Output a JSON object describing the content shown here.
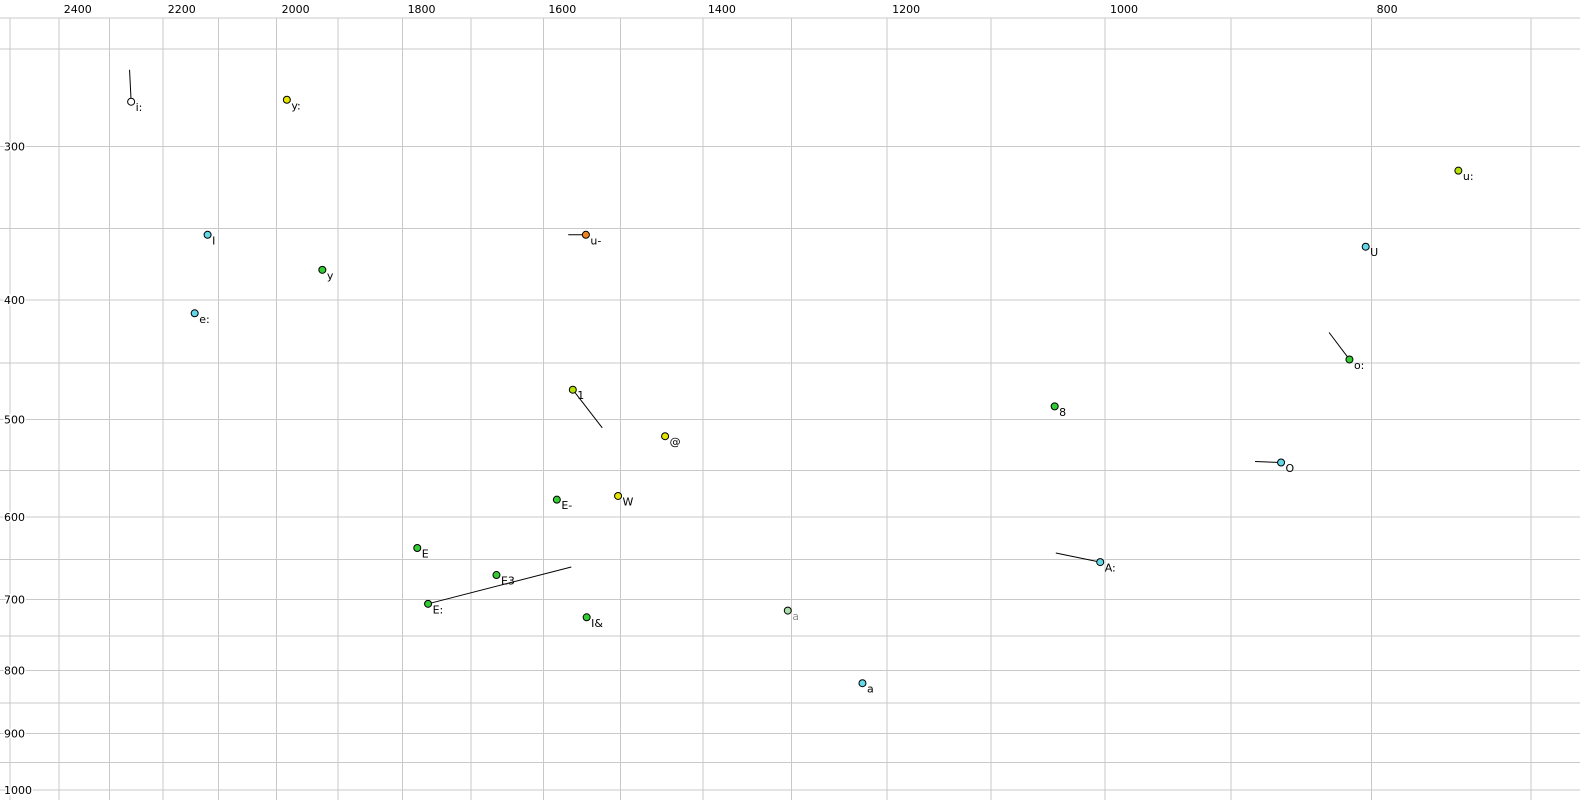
{
  "chart_data": {
    "type": "scatter",
    "title": "",
    "x_axis": {
      "scale": "log",
      "reversed": true,
      "left_value": 2521,
      "right_value": 672,
      "tick_labels": [
        "2400",
        "2200",
        "2000",
        "1800",
        "1600",
        "1400",
        "1200",
        "1000",
        "800"
      ],
      "tick_values": [
        2400,
        2200,
        2000,
        1800,
        1600,
        1400,
        1200,
        1000,
        800
      ],
      "gridline_min": 700,
      "gridline_max": 2500,
      "gridline_step": 100
    },
    "y_axis": {
      "scale": "log",
      "top_value": 236,
      "bottom_value": 1019,
      "tick_labels": [
        "300",
        "400",
        "500",
        "600",
        "700",
        "800",
        "900",
        "1000"
      ],
      "tick_values": [
        300,
        400,
        500,
        600,
        700,
        800,
        900,
        1000
      ],
      "gridline_min": 250,
      "gridline_max": 1000,
      "gridline_step": 50
    },
    "points": [
      {
        "label": "i:",
        "f2": 2259,
        "f1": 276,
        "color": "#ffffff",
        "tail": [
          2262,
          260
        ]
      },
      {
        "label": "y:",
        "f2": 1983,
        "f1": 275,
        "color": "#e5e500"
      },
      {
        "label": "u:",
        "f2": 744,
        "f1": 314,
        "color": "#b5e000"
      },
      {
        "label": "I",
        "f2": 2119,
        "f1": 354,
        "color": "#63d8e8"
      },
      {
        "label": "u-",
        "f2": 1544,
        "f1": 354,
        "color": "#ef8522",
        "tail": [
          1567,
          354
        ]
      },
      {
        "label": "U",
        "f2": 804,
        "f1": 362,
        "color": "#63d8e8"
      },
      {
        "label": "y",
        "f2": 1925,
        "f1": 378,
        "color": "#33cc33"
      },
      {
        "label": "e:",
        "f2": 2142,
        "f1": 410,
        "color": "#63d8e8"
      },
      {
        "label": "o:",
        "f2": 815,
        "f1": 447,
        "color": "#33cc33",
        "tail": [
          829,
          425
        ]
      },
      {
        "label": "1",
        "f2": 1561,
        "f1": 473,
        "color": "#b5e000",
        "tail": [
          1523,
          508
        ]
      },
      {
        "label": "8",
        "f2": 1043,
        "f1": 488,
        "color": "#33cc33"
      },
      {
        "label": "@",
        "f2": 1445,
        "f1": 516,
        "color": "#e5e500"
      },
      {
        "label": "O",
        "f2": 863,
        "f1": 542,
        "color": "#63d8e8",
        "tail": [
          882,
          541
        ]
      },
      {
        "label": "W",
        "f2": 1503,
        "f1": 577,
        "color": "#e5e500"
      },
      {
        "label": "E-",
        "f2": 1582,
        "f1": 581,
        "color": "#33cc33"
      },
      {
        "label": "E",
        "f2": 1778,
        "f1": 636,
        "color": "#33cc33"
      },
      {
        "label": "E3",
        "f2": 1664,
        "f1": 669,
        "color": "#33cc33"
      },
      {
        "label": "E:",
        "f2": 1762,
        "f1": 706,
        "color": "#33cc33",
        "tail": [
          1563,
          659
        ]
      },
      {
        "label": "I&",
        "f2": 1543,
        "f1": 724,
        "color": "#33cc33"
      },
      {
        "label": "a",
        "f2": 1304,
        "f1": 715,
        "color": "#aadfaa",
        "label_color": "#909090"
      },
      {
        "label": "A:",
        "f2": 1004,
        "f1": 653,
        "color": "#63d8e8",
        "tail": [
          1042,
          642
        ]
      },
      {
        "label": "a",
        "f2": 1225,
        "f1": 819,
        "color": "#63d8e8"
      }
    ],
    "colors": {
      "background": "#ffffff",
      "grid": "#c9c9c9",
      "point_stroke": "#000000",
      "label": "#000000"
    }
  }
}
